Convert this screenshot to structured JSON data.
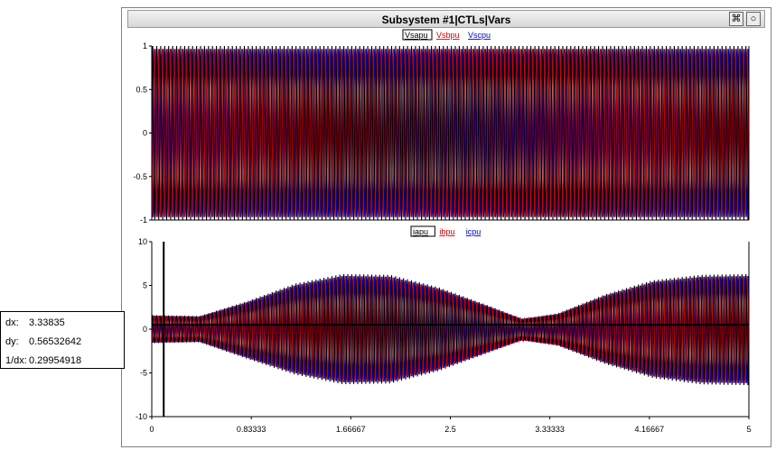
{
  "window": {
    "title": "Subsystem #1|CTLs|Vars",
    "btn_snap": "⌘",
    "btn_circle": "○"
  },
  "readout": {
    "dx_label": "dx:",
    "dx_value": "3.33835",
    "dy_label": "dy:",
    "dy_value": "0.56532642",
    "inv_label": "1/dx:",
    "inv_value": "0.29954918"
  },
  "colors": {
    "a": "#000000",
    "b": "#cc0000",
    "c": "#0000cc"
  },
  "chart_data": [
    {
      "type": "line",
      "legend": [
        "Vsapu",
        "Vsbpu",
        "Vscpu"
      ],
      "xlim": [
        0,
        5
      ],
      "ylim": [
        -1,
        1
      ],
      "yticks": [
        "1",
        "0.5",
        "0",
        "-0.5",
        "-1"
      ],
      "ytick_values": [
        1,
        0.5,
        0,
        -0.5,
        -1
      ],
      "envelope": {
        "x": [
          0,
          5
        ],
        "upper": [
          1,
          1
        ],
        "lower": [
          -1,
          -1
        ]
      }
    },
    {
      "type": "line",
      "legend": [
        "iapu",
        "ibpu",
        "icpu"
      ],
      "xlim": [
        0,
        5
      ],
      "ylim": [
        -10,
        10
      ],
      "yticks": [
        "10",
        "5",
        "0",
        "-5",
        "-10"
      ],
      "ytick_values": [
        10,
        5,
        0,
        -5,
        -10
      ],
      "xticks": [
        "0",
        "0.83333",
        "1.66667",
        "2.5",
        "3.33333",
        "4.16667",
        "5"
      ],
      "xtick_values": [
        0,
        0.83333,
        1.66667,
        2.5,
        3.33333,
        4.16667,
        5
      ],
      "envelope": {
        "x": [
          0,
          0.4,
          0.8,
          1.2,
          1.6,
          2.0,
          2.4,
          2.8,
          3.1,
          3.4,
          3.8,
          4.2,
          4.6,
          5.0
        ],
        "upper": [
          1.6,
          1.5,
          3.2,
          5.2,
          6.3,
          6.2,
          4.8,
          2.8,
          1.2,
          1.8,
          4.0,
          5.6,
          6.2,
          6.3
        ],
        "lower": [
          -1.6,
          -1.5,
          -3.4,
          -5.2,
          -6.3,
          -6.2,
          -4.8,
          -2.8,
          -1.3,
          -1.9,
          -4.0,
          -5.6,
          -6.3,
          -6.4
        ]
      },
      "cursor_x": 0.1,
      "mean_line": {
        "x": [
          0,
          5
        ],
        "y": [
          0.5,
          0.5
        ]
      }
    }
  ]
}
